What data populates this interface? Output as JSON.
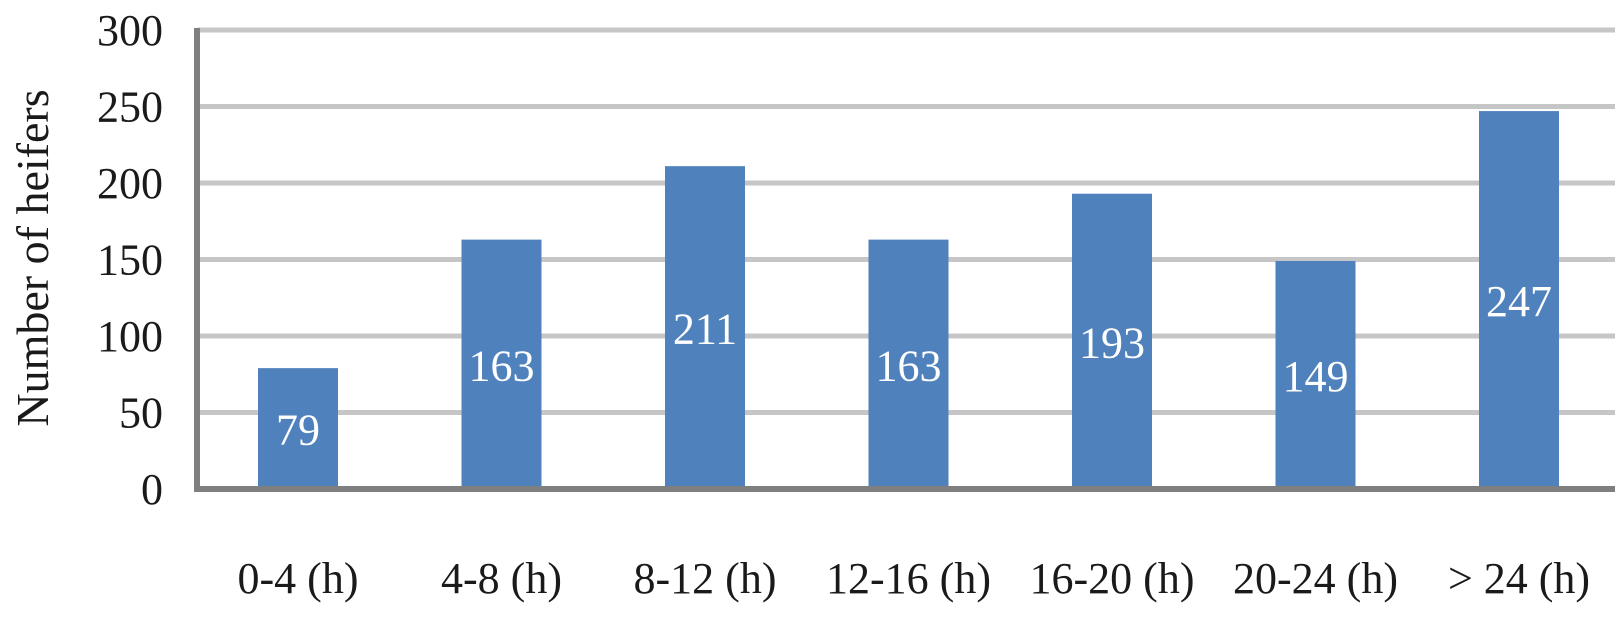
{
  "chart_data": {
    "type": "bar",
    "categories": [
      "0-4 (h)",
      "4-8 (h)",
      "8-12 (h)",
      "12-16 (h)",
      "16-20 (h)",
      "20-24 (h)",
      "> 24 (h)"
    ],
    "values": [
      79,
      163,
      211,
      163,
      193,
      149,
      247
    ],
    "data_labels": [
      "79",
      "163",
      "211",
      "163",
      "193",
      "149",
      "247"
    ],
    "title": "",
    "xlabel": "",
    "ylabel": "Number of heifers",
    "ylim": [
      0,
      300
    ],
    "yticks": [
      0,
      50,
      100,
      150,
      200,
      250,
      300
    ],
    "ytick_labels": [
      "0",
      "50",
      "100",
      "150",
      "200",
      "250",
      "300"
    ],
    "grid": true,
    "legend": "none",
    "bar_color": "#4f81bd"
  }
}
